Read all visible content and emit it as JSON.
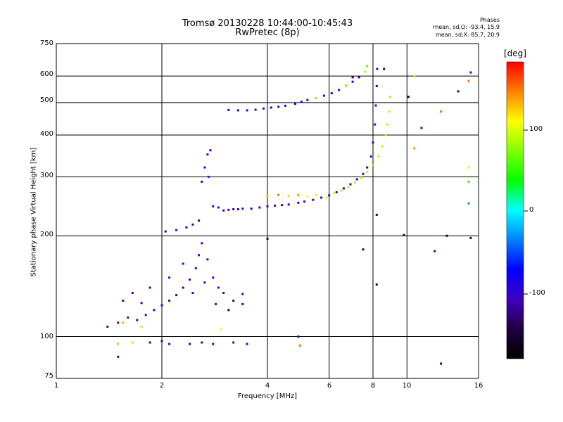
{
  "header": {
    "title_line1": "Tromsø 20130228 10:44:00-10:45:43",
    "title_line2": "RwPretec (8p)",
    "phase_title": "Phases",
    "stat_o": "mean, sd,O: -93.4, 15.9",
    "stat_x": "mean, sd,X:  85.7, 20.9"
  },
  "colorbar": {
    "label": "[deg]",
    "ticks": [
      "100",
      "0",
      "-100"
    ],
    "colors": [
      "#ff0000",
      "#ff8000",
      "#ffff00",
      "#80ff00",
      "#00ff00",
      "#00ffff",
      "#0080ff",
      "#0000ff",
      "#4000c0",
      "#200040",
      "#000000"
    ]
  },
  "chart_data": {
    "type": "scatter",
    "title": "Tromsø 20130228 10:44:00-10:45:43",
    "subtitle": "RwPretec (8p)",
    "xlabel": "Frequency [MHz]",
    "ylabel": "Stationary phase Virtual Height [km]",
    "x_scale": "log",
    "y_scale": "log",
    "xlim": [
      1,
      16
    ],
    "ylim": [
      75,
      750
    ],
    "x_ticks": [
      "1",
      "2",
      "4",
      "6",
      "8",
      "10",
      "16"
    ],
    "y_ticks": [
      "750",
      "600",
      "500",
      "400",
      "300",
      "200",
      "100",
      "75"
    ],
    "grid": true,
    "color_scale": "phase in degrees",
    "series": [
      {
        "points": [
          [
            3.1,
            475,
            -95
          ],
          [
            3.3,
            474,
            -100
          ],
          [
            3.5,
            474,
            -92
          ],
          [
            3.7,
            476,
            -98
          ],
          [
            3.9,
            480,
            -95
          ],
          [
            4.1,
            483,
            -90
          ],
          [
            4.3,
            486,
            -100
          ],
          [
            4.5,
            489,
            -95
          ],
          [
            4.8,
            496,
            -85
          ],
          [
            5.0,
            503,
            -95
          ],
          [
            5.2,
            509,
            -100
          ],
          [
            5.5,
            515,
            130
          ],
          [
            5.8,
            524,
            -95
          ],
          [
            6.1,
            533,
            -90
          ],
          [
            6.4,
            545,
            -100
          ],
          [
            6.7,
            562,
            60
          ],
          [
            7.0,
            577,
            -95
          ],
          [
            7.3,
            595,
            -90
          ],
          [
            7.6,
            618,
            80
          ],
          [
            3.0,
            238,
            -100
          ],
          [
            3.2,
            240,
            -95
          ],
          [
            3.4,
            241,
            -100
          ],
          [
            3.6,
            241,
            -92
          ],
          [
            3.8,
            243,
            -98
          ],
          [
            4.0,
            245,
            -95
          ],
          [
            4.2,
            246,
            -100
          ],
          [
            4.4,
            247,
            -92
          ],
          [
            4.6,
            248,
            -100
          ],
          [
            4.9,
            251,
            -95
          ],
          [
            5.1,
            253,
            -100
          ],
          [
            5.4,
            256,
            -92
          ],
          [
            5.7,
            260,
            -98
          ],
          [
            6.0,
            264,
            -95
          ],
          [
            6.3,
            270,
            -100
          ],
          [
            6.6,
            277,
            -92
          ],
          [
            6.9,
            285,
            -98
          ],
          [
            7.2,
            295,
            -95
          ],
          [
            7.5,
            306,
            -100
          ],
          [
            7.7,
            320,
            -92
          ],
          [
            7.9,
            345,
            -98
          ],
          [
            8.0,
            380,
            -95
          ],
          [
            8.1,
            430,
            -100
          ],
          [
            8.15,
            490,
            -92
          ],
          [
            8.2,
            560,
            -98
          ],
          [
            8.22,
            630,
            -95
          ],
          [
            2.8,
            245,
            -90
          ],
          [
            2.9,
            243,
            -95
          ],
          [
            3.1,
            239,
            -100
          ],
          [
            3.3,
            240,
            -92
          ],
          [
            4.0,
            262,
            130
          ],
          [
            4.3,
            265,
            150
          ],
          [
            4.6,
            263,
            120
          ],
          [
            4.9,
            265,
            140
          ],
          [
            5.2,
            262,
            110
          ],
          [
            5.5,
            264,
            100
          ],
          [
            5.9,
            260,
            100
          ],
          [
            6.2,
            268,
            95
          ],
          [
            6.5,
            273,
            80
          ],
          [
            6.8,
            280,
            90
          ],
          [
            7.1,
            288,
            80
          ],
          [
            7.4,
            298,
            85
          ],
          [
            7.7,
            310,
            90
          ],
          [
            8.0,
            325,
            80
          ],
          [
            8.3,
            345,
            85
          ],
          [
            8.5,
            370,
            90
          ],
          [
            8.7,
            400,
            80
          ],
          [
            8.8,
            430,
            85
          ],
          [
            8.9,
            470,
            90
          ],
          [
            8.95,
            520,
            80
          ],
          [
            2.05,
            206,
            -95
          ],
          [
            2.2,
            208,
            -100
          ],
          [
            2.35,
            212,
            -92
          ],
          [
            2.45,
            216,
            -98
          ],
          [
            2.55,
            222,
            -95
          ],
          [
            2.6,
            290,
            -90
          ],
          [
            2.65,
            320,
            -95
          ],
          [
            2.7,
            350,
            -100
          ],
          [
            2.75,
            360,
            -92
          ],
          [
            2.72,
            300,
            -60
          ],
          [
            1.4,
            107,
            -100
          ],
          [
            1.5,
            110,
            -95
          ],
          [
            1.6,
            114,
            -100
          ],
          [
            1.7,
            112,
            -92
          ],
          [
            1.8,
            116,
            -98
          ],
          [
            1.9,
            120,
            -95
          ],
          [
            2.0,
            124,
            -100
          ],
          [
            2.1,
            128,
            -92
          ],
          [
            2.2,
            133,
            -98
          ],
          [
            2.3,
            140,
            -95
          ],
          [
            2.4,
            148,
            -100
          ],
          [
            2.5,
            160,
            -92
          ],
          [
            2.55,
            175,
            -98
          ],
          [
            2.6,
            190,
            -95
          ],
          [
            2.7,
            170,
            -100
          ],
          [
            2.8,
            150,
            -92
          ],
          [
            2.9,
            140,
            -98
          ],
          [
            3.0,
            135,
            -95
          ],
          [
            3.2,
            128,
            -130
          ],
          [
            3.4,
            125,
            -100
          ],
          [
            1.55,
            128,
            -100
          ],
          [
            1.65,
            135,
            -95
          ],
          [
            1.75,
            126,
            -100
          ],
          [
            1.85,
            140,
            -95
          ],
          [
            2.1,
            150,
            -100
          ],
          [
            2.3,
            165,
            -95
          ],
          [
            2.45,
            135,
            -90
          ],
          [
            2.65,
            145,
            -110
          ],
          [
            2.85,
            125,
            -100
          ],
          [
            3.1,
            120,
            -140
          ],
          [
            1.85,
            96,
            -100
          ],
          [
            2.0,
            97,
            -95
          ],
          [
            2.1,
            95,
            -100
          ],
          [
            2.4,
            95,
            -95
          ],
          [
            2.6,
            96,
            -100
          ],
          [
            2.8,
            95,
            -92
          ],
          [
            3.2,
            96,
            -100
          ],
          [
            3.5,
            95,
            -95
          ],
          [
            1.5,
            87,
            -100
          ],
          [
            4.9,
            100,
            -120
          ],
          [
            4.95,
            94,
            150
          ],
          [
            1.5,
            95,
            130
          ],
          [
            1.65,
            96,
            120
          ],
          [
            1.55,
            110,
            130
          ],
          [
            1.75,
            107,
            120
          ],
          [
            2.95,
            105,
            110
          ],
          [
            3.4,
            134,
            -120
          ],
          [
            10.5,
            600,
            120
          ],
          [
            15,
            580,
            150
          ],
          [
            15.2,
            615,
            -100
          ],
          [
            14,
            540,
            -130
          ],
          [
            12.5,
            470,
            150
          ],
          [
            11,
            420,
            -100
          ],
          [
            13,
            200,
            -150
          ],
          [
            15,
            320,
            100
          ],
          [
            15,
            290,
            50
          ],
          [
            15,
            250,
            -30
          ],
          [
            12,
            180,
            -120
          ],
          [
            9.8,
            201,
            -150
          ],
          [
            8.2,
            231,
            -150
          ],
          [
            7.5,
            182,
            -140
          ],
          [
            8.2,
            143,
            -150
          ],
          [
            10.1,
            520,
            -150
          ],
          [
            12.5,
            83,
            -140
          ],
          [
            4.0,
            196,
            -150
          ],
          [
            7.0,
            595,
            -130
          ],
          [
            10.5,
            365,
            140
          ],
          [
            15.2,
            197,
            -140
          ],
          [
            7.7,
            642,
            60
          ],
          [
            8.6,
            630,
            -140
          ]
        ]
      }
    ]
  }
}
